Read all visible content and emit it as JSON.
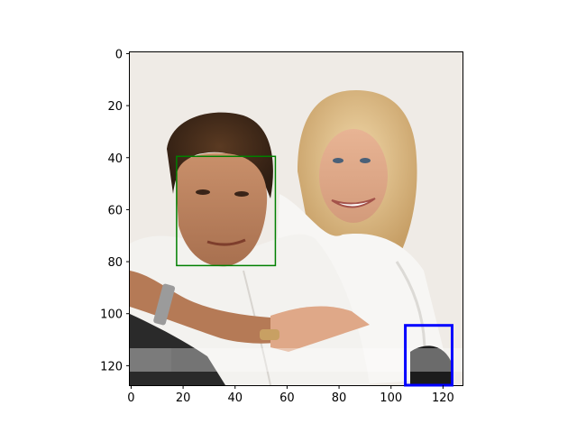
{
  "figure": {
    "x_ticks": [
      "0",
      "20",
      "40",
      "60",
      "80",
      "100",
      "120"
    ],
    "y_ticks": [
      "0",
      "20",
      "40",
      "60",
      "80",
      "100",
      "120"
    ],
    "image_extent": {
      "width": 128,
      "height": 128
    }
  },
  "photo": {
    "description_icon": "portrait-photo",
    "watermark_text": ""
  },
  "boxes": [
    {
      "name": "face-box-green",
      "color": "#008000",
      "x0": 17.5,
      "y0": 39.5,
      "x1": 55.5,
      "y1": 81.5
    },
    {
      "name": "box-blue",
      "color": "#0000ff",
      "x0": 105.5,
      "y0": 104.5,
      "x1": 123.5,
      "y1": 127.5
    }
  ]
}
